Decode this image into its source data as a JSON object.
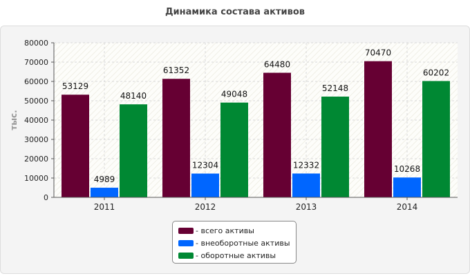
{
  "title": "Динамика состава активов",
  "chart_data": {
    "type": "bar",
    "title": "Динамика состава активов",
    "ylabel": "тыс.",
    "xlabel": "",
    "categories": [
      "2011",
      "2012",
      "2013",
      "2014"
    ],
    "series": [
      {
        "name": "- всего активы",
        "color": "#660033",
        "values": [
          53129,
          61352,
          64480,
          70470
        ]
      },
      {
        "name": "- внеоборотные активы",
        "color": "#0066ff",
        "values": [
          4989,
          12304,
          12332,
          10268
        ]
      },
      {
        "name": "- оборотные активы",
        "color": "#008833",
        "values": [
          48140,
          49048,
          52148,
          60202
        ]
      }
    ],
    "ylim": [
      0,
      80000
    ],
    "yticks": [
      0,
      10000,
      20000,
      30000,
      40000,
      50000,
      60000,
      70000,
      80000
    ],
    "grid": true,
    "legend_position": "bottom"
  }
}
